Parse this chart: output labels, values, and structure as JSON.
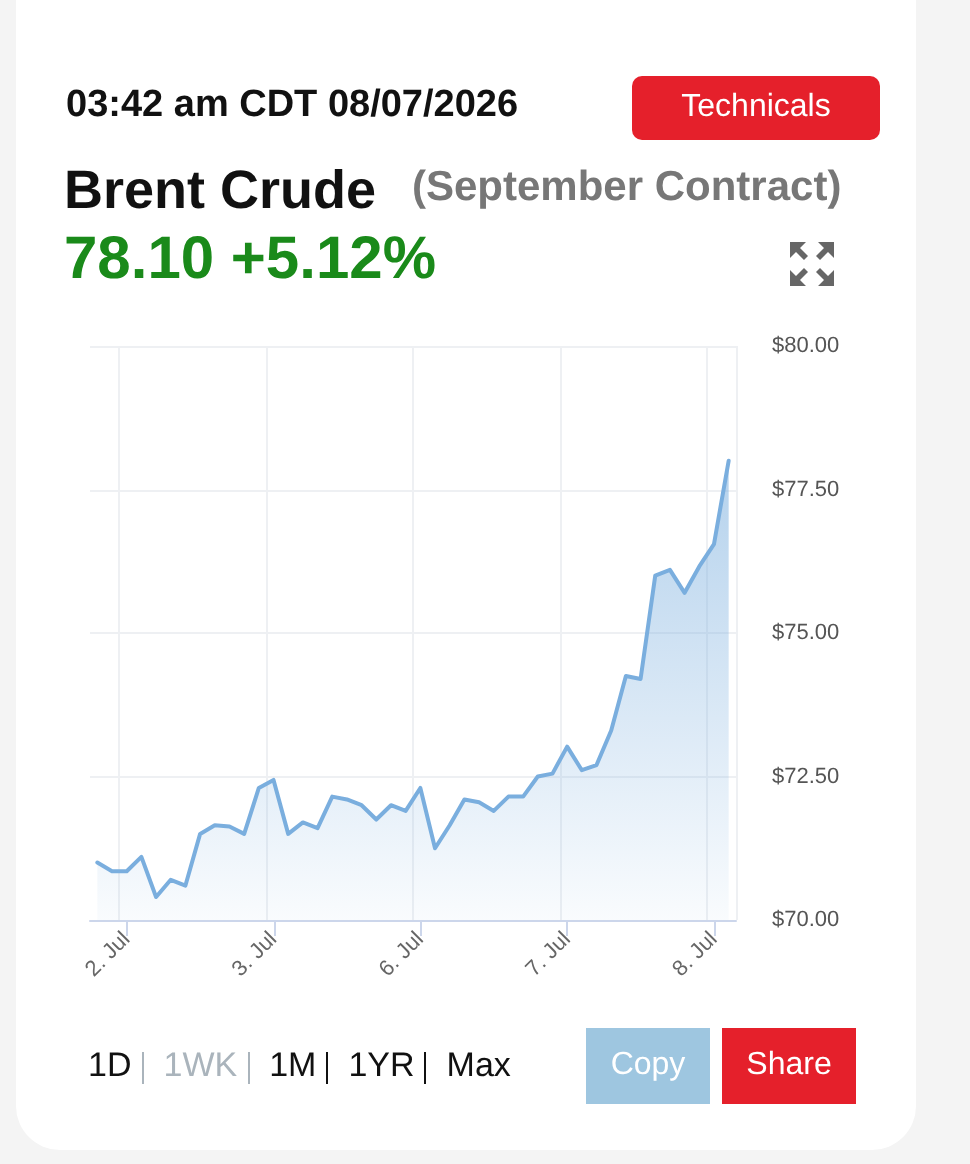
{
  "chart_data": {
    "type": "area",
    "title": "Brent Crude",
    "subtitle": "(September Contract)",
    "annotations": [
      "03:42 am CDT 08/07/2026",
      "78.10 +5.12%",
      "Technicals",
      "1D",
      "1WK",
      "1M",
      "1YR",
      "Max",
      "Copy",
      "Share"
    ],
    "categories": [
      null,
      null,
      "2. Jul",
      null,
      null,
      null,
      null,
      null,
      null,
      null,
      null,
      null,
      "3. Jul",
      null,
      null,
      null,
      null,
      null,
      null,
      null,
      null,
      null,
      "6. Jul",
      null,
      null,
      null,
      null,
      null,
      null,
      null,
      null,
      null,
      "7. Jul",
      null,
      null,
      null,
      null,
      null,
      null,
      null,
      null,
      null,
      "8. Jul",
      null
    ],
    "series": [
      {
        "color": "#7aaede",
        "values": [
          71.0,
          70.85,
          70.85,
          71.1,
          70.4,
          70.7,
          70.6,
          71.5,
          71.65,
          71.63,
          71.5,
          72.3,
          72.44,
          71.5,
          71.7,
          71.6,
          72.15,
          72.1,
          72.0,
          71.75,
          72.0,
          71.9,
          72.3,
          71.25,
          71.65,
          72.1,
          72.05,
          71.9,
          72.15,
          72.15,
          72.5,
          72.55,
          73.02,
          72.61,
          72.7,
          73.3,
          74.25,
          74.2,
          76.0,
          76.1,
          75.7,
          76.16,
          76.55,
          78.0
        ]
      }
    ],
    "ylim": [
      70,
      80
    ],
    "yticks": [
      {
        "value": 70,
        "label": "$70.00"
      },
      {
        "value": 72.5,
        "label": "$72.50"
      },
      {
        "value": 75,
        "label": "$75.00"
      },
      {
        "value": 77.5,
        "label": "$77.50"
      },
      {
        "value": 80,
        "label": "$80.00"
      }
    ],
    "grid": true,
    "marker": "none",
    "line_style": "solid"
  }
}
